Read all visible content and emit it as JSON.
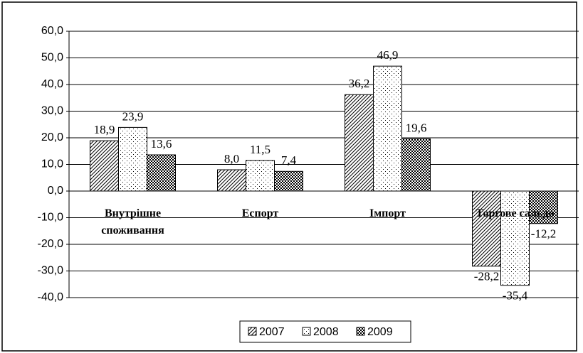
{
  "chart_data": {
    "type": "bar",
    "categories": [
      "Внутрішне споживання",
      "Еспорт",
      "Імпорт",
      "Торгове сальдо"
    ],
    "series": [
      {
        "name": "2007",
        "color": "#000000",
        "pattern": "hatch",
        "values": [
          18.9,
          8.0,
          36.2,
          -28.2
        ],
        "value_labels": [
          "18,9",
          "8,0",
          "36,2",
          "-28,2"
        ]
      },
      {
        "name": "2008",
        "color": "#000000",
        "pattern": "dots",
        "values": [
          23.9,
          11.5,
          46.9,
          -35.4
        ],
        "value_labels": [
          "23,9",
          "11,5",
          "46,9",
          "-35,4"
        ]
      },
      {
        "name": "2009",
        "color": "#000000",
        "pattern": "checker",
        "values": [
          13.6,
          7.4,
          19.6,
          -12.2
        ],
        "value_labels": [
          "13,6",
          "7,4",
          "19,6",
          "-12,2"
        ]
      }
    ],
    "ylim": [
      -40,
      60
    ],
    "yticks": [
      {
        "value": -40,
        "label": "-40,0"
      },
      {
        "value": -30,
        "label": "-30,0"
      },
      {
        "value": -20,
        "label": "-20,0"
      },
      {
        "value": -10,
        "label": "-10,0"
      },
      {
        "value": 0,
        "label": "0,0"
      },
      {
        "value": 10,
        "label": "10,0"
      },
      {
        "value": 20,
        "label": "20,0"
      },
      {
        "value": 30,
        "label": "30,0"
      },
      {
        "value": 40,
        "label": "40,0"
      },
      {
        "value": 50,
        "label": "50,0"
      },
      {
        "value": 60,
        "label": "60,0"
      }
    ],
    "grid": true,
    "legend": "bottom"
  }
}
